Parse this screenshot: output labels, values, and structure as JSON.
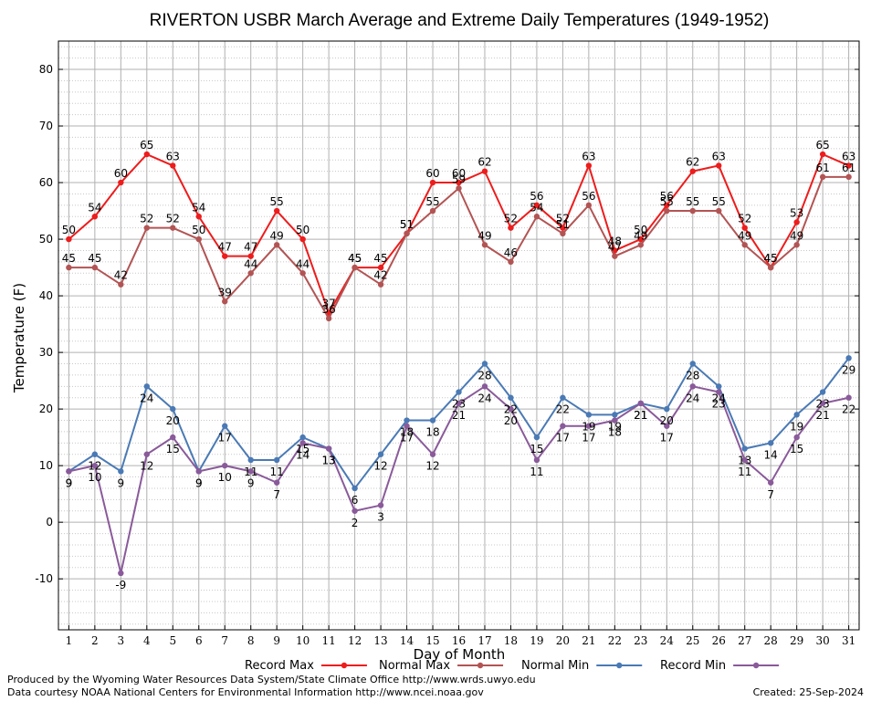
{
  "chart_data": {
    "type": "line",
    "title": "RIVERTON USBR March Average and Extreme Daily Temperatures (1949-1952)",
    "xlabel": "Day of Month",
    "ylabel": "Temperature (F)",
    "xlim": [
      0.6,
      31.4
    ],
    "ylim": [
      -19,
      85
    ],
    "yticks": [
      -10,
      0,
      10,
      20,
      30,
      40,
      50,
      60,
      70,
      80
    ],
    "x": [
      1,
      2,
      3,
      4,
      5,
      6,
      7,
      8,
      9,
      10,
      11,
      12,
      13,
      14,
      15,
      16,
      17,
      18,
      19,
      20,
      21,
      22,
      23,
      24,
      25,
      26,
      27,
      28,
      29,
      30,
      31
    ],
    "grid": true,
    "legend_position": "bottom",
    "series": [
      {
        "name": "Record Max",
        "color": "#ee1c1c",
        "values": [
          50,
          54,
          60,
          65,
          63,
          54,
          47,
          47,
          55,
          50,
          37,
          45,
          45,
          51,
          60,
          60,
          62,
          52,
          56,
          52,
          63,
          48,
          50,
          56,
          62,
          63,
          52,
          45,
          53,
          65,
          63
        ]
      },
      {
        "name": "Normal Max",
        "color": "#b35454",
        "values": [
          45,
          45,
          42,
          52,
          52,
          50,
          39,
          44,
          49,
          44,
          36,
          45,
          42,
          51,
          55,
          59,
          49,
          46,
          54,
          51,
          56,
          47,
          49,
          55,
          55,
          55,
          49,
          45,
          49,
          61,
          61
        ]
      },
      {
        "name": "Normal Min",
        "color": "#4a7ab5",
        "values": [
          9,
          12,
          9,
          24,
          20,
          9,
          17,
          11,
          11,
          15,
          13,
          6,
          12,
          18,
          18,
          23,
          28,
          22,
          15,
          22,
          19,
          19,
          21,
          20,
          28,
          24,
          13,
          14,
          19,
          23,
          29
        ]
      },
      {
        "name": "Record Min",
        "color": "#8a5a9a",
        "values": [
          9,
          10,
          -9,
          12,
          15,
          9,
          10,
          9,
          7,
          14,
          13,
          2,
          3,
          17,
          12,
          21,
          24,
          20,
          11,
          17,
          17,
          18,
          21,
          17,
          24,
          23,
          11,
          7,
          15,
          21,
          22
        ]
      }
    ]
  },
  "footer": {
    "line1": "Produced by the Wyoming Water Resources Data System/State Climate Office http://www.wrds.uwyo.edu",
    "line2": "Data courtesy NOAA National Centers for Environmental Information http://www.ncei.noaa.gov",
    "created": "Created:  25-Sep-2024"
  }
}
